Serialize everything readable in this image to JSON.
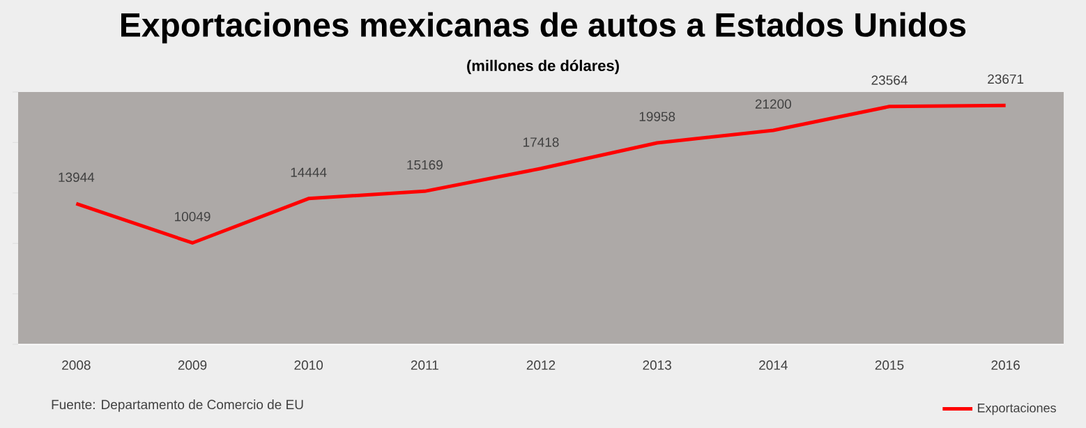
{
  "chart_data": {
    "type": "line",
    "title": "Exportaciones mexicanas de autos a Estados Unidos",
    "subtitle": "(millones de dólares)",
    "categories": [
      "2008",
      "2009",
      "2010",
      "2011",
      "2012",
      "2013",
      "2014",
      "2015",
      "2016"
    ],
    "series": [
      {
        "name": "Exportaciones",
        "color": "#ff0000",
        "values": [
          13944,
          10049,
          14444,
          15169,
          17418,
          19958,
          21200,
          23564,
          23671
        ]
      }
    ],
    "ylim": [
      0,
      25000
    ],
    "yticks": [
      {
        "value": 0,
        "label": null
      },
      {
        "value": 5000,
        "label": null
      },
      {
        "value": 10000,
        "label": null
      },
      {
        "value": 15000,
        "label": null
      },
      {
        "value": 20000,
        "label": null
      },
      {
        "value": 25000,
        "label": null
      }
    ],
    "tick_labels": "x",
    "data_labels": true,
    "legend": "bottom right",
    "marker": "none",
    "line_style": "solid",
    "annotations": [
      "Fuente: Departamento de Comercio de EU"
    ]
  }
}
